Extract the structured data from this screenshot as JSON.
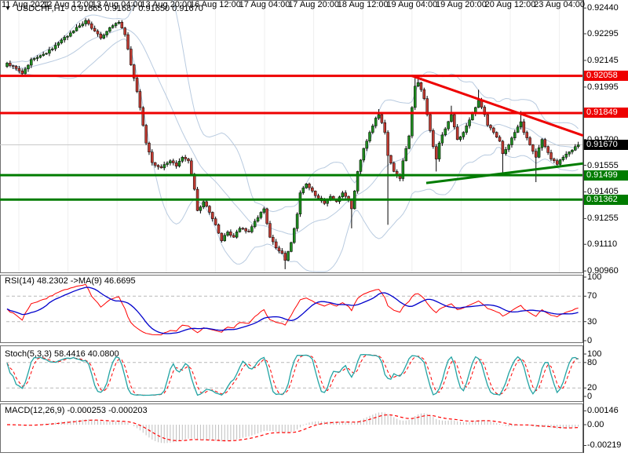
{
  "title": {
    "dropdown_icon": "▼",
    "symbol": "USDCHF,H1",
    "ohlc": "0.91665 0.91687 0.91650 0.91670"
  },
  "colors": {
    "bull": "#1f8b1f",
    "bear": "#bf3a31",
    "wick": "#000000",
    "bollinger": "#b9cbe0",
    "resistance": "#ee0000",
    "support": "#007c00",
    "bid_line": "#c8c8c8",
    "badge_bid_bg": "#000000",
    "grid": "#efefef",
    "panel_border": "#707070",
    "axis_line": "#3c3c3c",
    "level_dash": "#b8b8b8",
    "rsi_line": "#ff0000",
    "rsi_ma": "#0000cc",
    "stoch_k": "#22a3a3",
    "stoch_d": "#ff0000",
    "macd_hist": "#bfbfbf",
    "macd_signal": "#ff0000"
  },
  "price_axis": {
    "labels": [
      {
        "text": "0.92440",
        "price": 0.9244
      },
      {
        "text": "0.92295",
        "price": 0.92295
      },
      {
        "text": "0.92145",
        "price": 0.92145
      },
      {
        "text": "0.91995",
        "price": 0.91995
      },
      {
        "text": "0.91700",
        "price": 0.917
      },
      {
        "text": "0.91555",
        "price": 0.91555
      },
      {
        "text": "0.91405",
        "price": 0.91405
      },
      {
        "text": "0.91255",
        "price": 0.91255
      },
      {
        "text": "0.91110",
        "price": 0.9111
      },
      {
        "text": "0.90960",
        "price": 0.9096
      }
    ],
    "badges": [
      {
        "text": "0.92058",
        "price": 0.92058,
        "type": "resistance"
      },
      {
        "text": "0.91849",
        "price": 0.91849,
        "type": "resistance"
      },
      {
        "text": "0.91670",
        "price": 0.9167,
        "type": "bid"
      },
      {
        "text": "0.91499",
        "price": 0.91499,
        "type": "support"
      },
      {
        "text": "0.91362",
        "price": 0.91362,
        "type": "support"
      }
    ]
  },
  "time_axis": {
    "labels": [
      "11 Aug 2021",
      "12 Aug 12:00",
      "13 Aug 04:00",
      "13 Aug 20:00",
      "16 Aug 12:00",
      "17 Aug 04:00",
      "17 Aug 20:00",
      "18 Aug 12:00",
      "19 Aug 04:00",
      "19 Aug 20:00",
      "20 Aug 12:00",
      "23 Aug 04:00"
    ]
  },
  "panels": {
    "rsi": {
      "label": "RSI(14) 48.2302  ->MA(9) 46.6695",
      "scale": [
        {
          "text": "100",
          "v": 100
        },
        {
          "text": "70",
          "v": 70
        },
        {
          "text": "30",
          "v": 30
        },
        {
          "text": "0",
          "v": 0
        }
      ],
      "dashed_levels": [
        70,
        30
      ]
    },
    "stoch": {
      "label": "Stoch(5,3,3) 58.4416 40.0800",
      "scale": [
        {
          "text": "100",
          "v": 100
        },
        {
          "text": "80",
          "v": 80
        },
        {
          "text": "20",
          "v": 20
        },
        {
          "text": "0",
          "v": 0
        }
      ],
      "dashed_levels": [
        80,
        20
      ]
    },
    "macd": {
      "label": "MACD(12,26,9) -0.000253 -0.000203",
      "scale": [
        {
          "text": "0.00146",
          "v": 0.00146
        },
        {
          "text": "0.00",
          "v": 0
        },
        {
          "text": "-0.00219",
          "v": -0.00219
        }
      ],
      "dashed_levels": []
    }
  },
  "chart_data": {
    "type": "candlestick",
    "symbol": "USDCHF",
    "period": "H1",
    "current_ohlc": {
      "open": 0.91665,
      "high": 0.91687,
      "low": 0.9165,
      "close": 0.9167
    },
    "visible_price_range": [
      0.9096,
      0.9244
    ],
    "n_candles": 190,
    "close_anchors": [
      [
        0,
        0.9213
      ],
      [
        3,
        0.921
      ],
      [
        5,
        0.9207
      ],
      [
        8,
        0.9215
      ],
      [
        12,
        0.9218
      ],
      [
        15,
        0.9221
      ],
      [
        18,
        0.9226
      ],
      [
        21,
        0.923
      ],
      [
        24,
        0.9234
      ],
      [
        26,
        0.9237
      ],
      [
        29,
        0.9231
      ],
      [
        31,
        0.9227
      ],
      [
        34,
        0.9233
      ],
      [
        37,
        0.9236
      ],
      [
        39,
        0.9229
      ],
      [
        41,
        0.9212
      ],
      [
        43,
        0.9197
      ],
      [
        45,
        0.9178
      ],
      [
        46,
        0.9168
      ],
      [
        48,
        0.9157
      ],
      [
        51,
        0.9154
      ],
      [
        54,
        0.9158
      ],
      [
        56,
        0.9155
      ],
      [
        58,
        0.916
      ],
      [
        60,
        0.9158
      ],
      [
        62,
        0.9142
      ],
      [
        63,
        0.913
      ],
      [
        65,
        0.9135
      ],
      [
        67,
        0.9129
      ],
      [
        69,
        0.9122
      ],
      [
        71,
        0.9113
      ],
      [
        73,
        0.9118
      ],
      [
        75,
        0.9115
      ],
      [
        77,
        0.912
      ],
      [
        80,
        0.9118
      ],
      [
        82,
        0.9124
      ],
      [
        84,
        0.9129
      ],
      [
        85,
        0.9131
      ],
      [
        87,
        0.9115
      ],
      [
        89,
        0.9109
      ],
      [
        91,
        0.9106
      ],
      [
        92,
        0.9102
      ],
      [
        94,
        0.9112
      ],
      [
        96,
        0.9128
      ],
      [
        97,
        0.914
      ],
      [
        99,
        0.9145
      ],
      [
        101,
        0.9141
      ],
      [
        103,
        0.9137
      ],
      [
        105,
        0.9134
      ],
      [
        107,
        0.9138
      ],
      [
        109,
        0.9135
      ],
      [
        111,
        0.914
      ],
      [
        113,
        0.9136
      ],
      [
        114,
        0.9131
      ],
      [
        116,
        0.9152
      ],
      [
        118,
        0.9165
      ],
      [
        120,
        0.9174
      ],
      [
        122,
        0.9182
      ],
      [
        123,
        0.9184
      ],
      [
        125,
        0.9174
      ],
      [
        126,
        0.9161
      ],
      [
        128,
        0.9152
      ],
      [
        130,
        0.9148
      ],
      [
        131,
        0.9158
      ],
      [
        133,
        0.9172
      ],
      [
        134,
        0.9188
      ],
      [
        135,
        0.92
      ],
      [
        136,
        0.9202
      ],
      [
        138,
        0.9193
      ],
      [
        139,
        0.9184
      ],
      [
        141,
        0.9166
      ],
      [
        142,
        0.9159
      ],
      [
        143,
        0.9168
      ],
      [
        145,
        0.9176
      ],
      [
        147,
        0.9184
      ],
      [
        148,
        0.9177
      ],
      [
        149,
        0.917
      ],
      [
        151,
        0.9174
      ],
      [
        153,
        0.9181
      ],
      [
        155,
        0.9188
      ],
      [
        156,
        0.9192
      ],
      [
        158,
        0.9184
      ],
      [
        159,
        0.9178
      ],
      [
        161,
        0.9174
      ],
      [
        163,
        0.9169
      ],
      [
        164,
        0.9162
      ],
      [
        166,
        0.9167
      ],
      [
        168,
        0.9174
      ],
      [
        170,
        0.918
      ],
      [
        171,
        0.9174
      ],
      [
        173,
        0.9167
      ],
      [
        175,
        0.916
      ],
      [
        177,
        0.917
      ],
      [
        178,
        0.9166
      ],
      [
        180,
        0.9159
      ],
      [
        182,
        0.9156
      ],
      [
        184,
        0.916
      ],
      [
        186,
        0.9163
      ],
      [
        188,
        0.9166
      ],
      [
        189,
        0.9167
      ]
    ],
    "wick_overrides": [
      [
        92,
        "l",
        0.9097
      ],
      [
        114,
        "l",
        0.912
      ],
      [
        123,
        "h",
        0.91871
      ],
      [
        126,
        "l",
        0.9122
      ],
      [
        135,
        "h",
        0.92055
      ],
      [
        136,
        "h",
        0.9205
      ],
      [
        142,
        "l",
        0.9152
      ],
      [
        147,
        "h",
        0.9189
      ],
      [
        156,
        "h",
        0.9198
      ],
      [
        164,
        "l",
        0.915
      ],
      [
        170,
        "h",
        0.9186
      ],
      [
        175,
        "l",
        0.9146
      ],
      [
        189,
        "h",
        0.91687
      ],
      [
        189,
        "l",
        0.9165
      ]
    ],
    "indicators": {
      "bollinger": {
        "period": 20,
        "deviation": 2
      },
      "rsi": {
        "period": 14,
        "ma_period": 9,
        "levels": [
          70,
          30
        ],
        "last": 48.2302,
        "ma_last": 46.6695
      },
      "stochastic": {
        "params": [
          5,
          3,
          3
        ],
        "levels": [
          80,
          20
        ],
        "last_k": 58.4416,
        "last_d": 40.08
      },
      "macd": {
        "params": [
          12,
          26,
          9
        ],
        "last": -0.000253,
        "signal_last": -0.000203,
        "axis_max": 0.00146,
        "axis_min": -0.00219
      }
    },
    "hlines": [
      {
        "price": 0.92058,
        "kind": "resistance"
      },
      {
        "price": 0.91849,
        "kind": "resistance"
      },
      {
        "price": 0.91499,
        "kind": "support"
      },
      {
        "price": 0.91362,
        "kind": "support"
      }
    ],
    "bid_price": 0.9167,
    "trendlines": [
      {
        "i1": 134,
        "p1": 0.92058,
        "i2": 190.6,
        "p2": 0.91722,
        "kind": "resistance"
      },
      {
        "i1": 138.7,
        "p1": 0.91455,
        "i2": 190.6,
        "p2": 0.91565,
        "kind": "support"
      }
    ]
  }
}
